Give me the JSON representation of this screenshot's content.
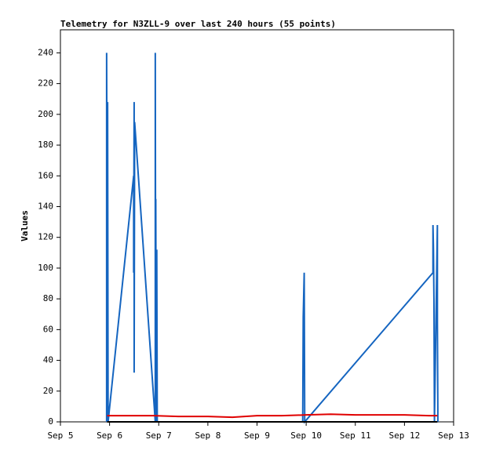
{
  "chart_data": {
    "type": "line",
    "title": "Telemetry for N3ZLL-9 over last 240 hours (55 points)",
    "y_label": "Values",
    "xlim": [
      5,
      13
    ],
    "xticks": [
      {
        "value": 5,
        "label": "Sep 5"
      },
      {
        "value": 6,
        "label": "Sep 6"
      },
      {
        "value": 7,
        "label": "Sep 7"
      },
      {
        "value": 8,
        "label": "Sep 8"
      },
      {
        "value": 9,
        "label": "Sep 9"
      },
      {
        "value": 10,
        "label": "Sep 10"
      },
      {
        "value": 11,
        "label": "Sep 11"
      },
      {
        "value": 12,
        "label": "Sep 12"
      },
      {
        "value": 13,
        "label": "Sep 13"
      }
    ],
    "ylim": [
      0,
      255
    ],
    "yticks": [
      0,
      20,
      40,
      60,
      80,
      100,
      120,
      140,
      160,
      180,
      200,
      220,
      240
    ],
    "series": [
      {
        "color": "#1565c0",
        "x": [
          5.94,
          5.94,
          5.95,
          5.96,
          5.97,
          6.49,
          6.49,
          6.5,
          6.5,
          6.51,
          6.93,
          6.93,
          6.94,
          6.94,
          6.95,
          6.96,
          6.97,
          9.93,
          9.94,
          9.96,
          9.97,
          12.58,
          12.58,
          12.59,
          12.6,
          12.61,
          12.67,
          12.67,
          12.68
        ],
        "values": [
          0,
          240,
          120,
          208,
          0,
          160,
          97,
          208,
          32,
          195,
          0,
          240,
          0,
          145,
          0,
          112,
          0,
          0,
          68,
          97,
          0,
          97,
          128,
          112,
          80,
          0,
          128,
          65,
          0
        ]
      },
      {
        "color": "#e00000",
        "x": [
          5.95,
          6.5,
          6.9,
          7.4,
          8.0,
          8.5,
          9.0,
          9.5,
          10.0,
          10.5,
          11.0,
          11.5,
          12.0,
          12.5,
          12.67
        ],
        "values": [
          4,
          4,
          4,
          3.5,
          3.5,
          3,
          4,
          4,
          4.5,
          5,
          4.5,
          4.5,
          4.5,
          4,
          4
        ]
      },
      {
        "color": "#000000",
        "x": [
          5.95,
          12.67
        ],
        "values": [
          0,
          0
        ]
      }
    ]
  }
}
